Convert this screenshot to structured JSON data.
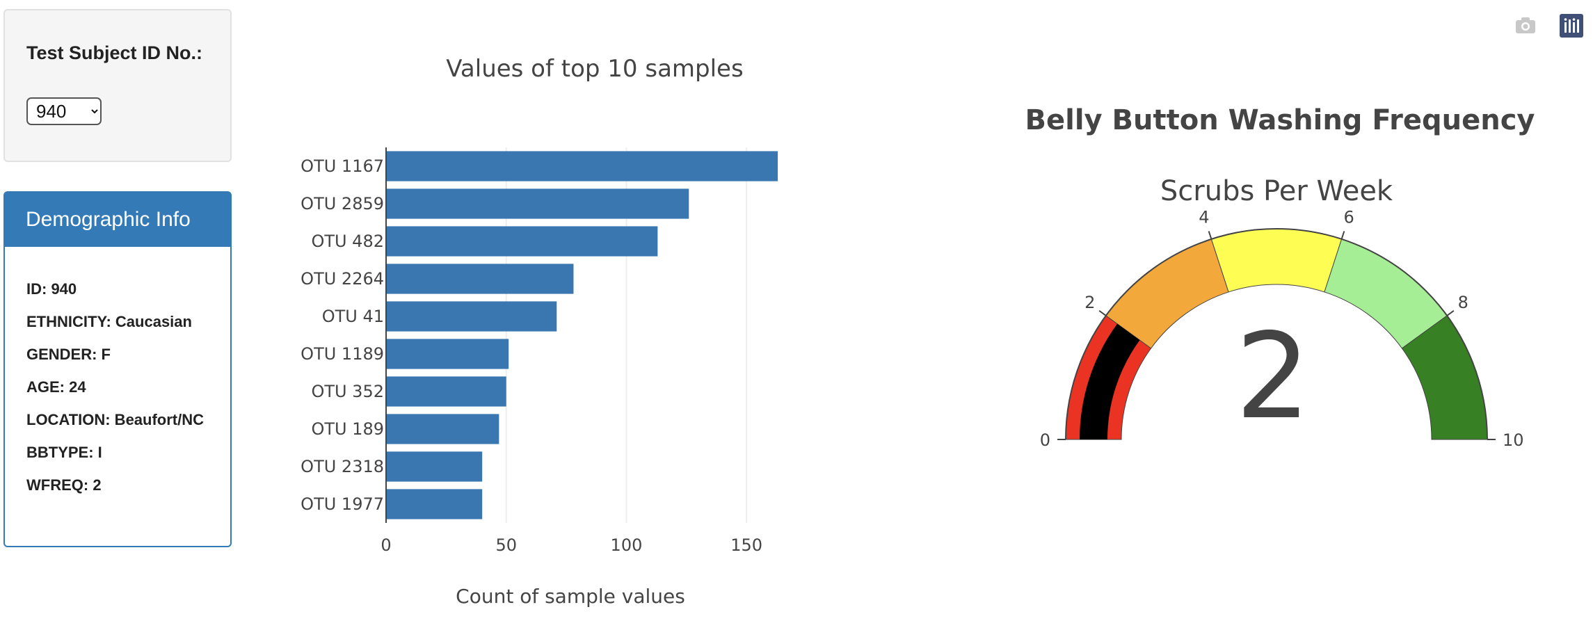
{
  "selector": {
    "label": "Test Subject ID No.:",
    "selected": "940",
    "options": [
      "940"
    ]
  },
  "demographics": {
    "header": "Demographic Info",
    "lines": [
      "ID: 940",
      "ETHNICITY: Caucasian",
      "GENDER: F",
      "AGE: 24",
      "LOCATION: Beaufort/NC",
      "BBTYPE: I",
      "WFREQ: 2"
    ]
  },
  "modebar": {
    "camera_icon": "camera-icon",
    "plotly_icon": "plotly-logo-icon"
  },
  "chart_data": [
    {
      "type": "bar",
      "orientation": "horizontal",
      "title": "Values of top 10 samples",
      "xlabel": "Count of sample values",
      "ylabel": "",
      "categories": [
        "OTU 1167",
        "OTU 2859",
        "OTU 482",
        "OTU 2264",
        "OTU 41",
        "OTU 1189",
        "OTU 352",
        "OTU 189",
        "OTU 2318",
        "OTU 1977"
      ],
      "values": [
        163,
        126,
        113,
        78,
        71,
        51,
        50,
        47,
        40,
        40
      ],
      "xlim": [
        0,
        165
      ],
      "xticks": [
        0,
        50,
        100,
        150
      ],
      "color": "#3a77b0",
      "grid": true
    },
    {
      "type": "gauge",
      "title": "Belly Button Washing Frequency",
      "subtitle": "Scrubs Per Week",
      "value": 2,
      "range": [
        0,
        10
      ],
      "ticks": [
        0,
        2,
        4,
        6,
        8,
        10
      ],
      "value_color": "#000000",
      "steps": [
        {
          "range": [
            0,
            2
          ],
          "color": "#ea3323"
        },
        {
          "range": [
            2,
            4
          ],
          "color": "#f2a83b"
        },
        {
          "range": [
            4,
            6
          ],
          "color": "#fdfd54"
        },
        {
          "range": [
            6,
            8
          ],
          "color": "#a6ee96"
        },
        {
          "range": [
            8,
            10
          ],
          "color": "#388024"
        }
      ]
    }
  ]
}
